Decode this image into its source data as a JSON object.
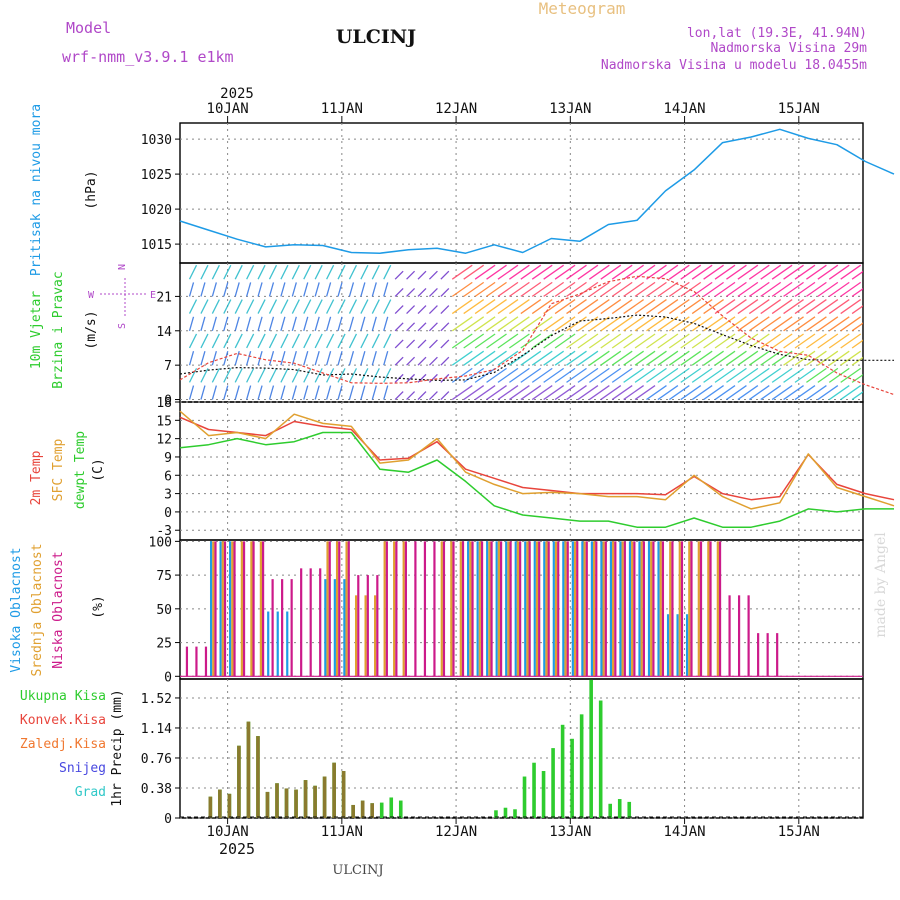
{
  "header": {
    "model_label": "Model",
    "model_name": "wrf-nmm_v3.9.1 e1km",
    "station": "ULCINJ",
    "product": "Meteogram",
    "lonlat": "lon,lat (19.3E, 41.94N)",
    "elevation": "Nadmorska Visina 29m",
    "model_elevation": "Nadmorska Visina u modelu 18.0455m"
  },
  "footer": {
    "station": "ULCINJ",
    "watermark": "made by Angel"
  },
  "colors": {
    "pressure": "#1e9be6",
    "temp": "#e8453c",
    "sfc": "#e0a030",
    "dew": "#2ecc2e",
    "high": "#1e9be6",
    "mid": "#e0a030",
    "low": "#cc1a8a",
    "precip_total": "#2ecc2e",
    "precip_conv": "#8a7a2e"
  },
  "time_axis": {
    "year_label": "2025",
    "dates": [
      "10JAN",
      "11JAN",
      "12JAN",
      "13JAN",
      "14JAN",
      "15JAN"
    ]
  },
  "chart_data": [
    {
      "type": "line",
      "ylabel": "Pritisak na nivou mora",
      "unit": "(hPa)",
      "yticks": [
        1015,
        1020,
        1025,
        1030
      ],
      "ylim": [
        1012.3,
        1032.3
      ],
      "x": [
        0,
        6,
        12,
        18,
        24,
        30,
        36,
        42,
        48,
        54,
        60,
        66,
        72,
        78,
        84,
        90,
        96,
        102,
        108,
        114,
        120,
        126,
        132,
        138,
        144,
        150
      ],
      "series": [
        {
          "values": [
            1018.3,
            1017.0,
            1015.7,
            1014.6,
            1014.9,
            1014.8,
            1013.8,
            1013.7,
            1014.2,
            1014.4,
            1013.7,
            1014.9,
            1013.8,
            1015.8,
            1015.4,
            1017.8,
            1018.4,
            1022.6,
            1025.6,
            1029.5,
            1030.3,
            1031.4,
            1030.1,
            1029.2,
            1026.8,
            1025.0
          ]
        }
      ]
    },
    {
      "type": "line",
      "ylabel": "10m Vjetar Brzina i Pravac",
      "unit": "(m/s)",
      "yticks": [
        0,
        7,
        14,
        21
      ],
      "ylim": [
        -0.5,
        27.8
      ],
      "direction_key": {
        "north": "N",
        "west": "W",
        "east": "E",
        "south": "S"
      },
      "x": [
        0,
        6,
        12,
        18,
        24,
        30,
        36,
        42,
        48,
        54,
        60,
        66,
        72,
        78,
        84,
        90,
        96,
        102,
        108,
        114,
        120,
        126,
        132,
        138,
        144,
        150
      ],
      "series": [
        {
          "values": [
            5.2,
            6.0,
            6.5,
            6.4,
            6.1,
            5.0,
            5.2,
            4.6,
            4.2,
            3.9,
            4.0,
            5.5,
            9.0,
            13.0,
            16.0,
            16.5,
            17.2,
            16.8,
            15.5,
            13.2,
            11.0,
            9.2,
            8.1,
            8.0,
            8.0,
            8.0
          ]
        },
        {
          "values": [
            4.0,
            7.5,
            9.4,
            8.1,
            7.4,
            5.4,
            3.4,
            3.3,
            3.4,
            4.2,
            4.8,
            6.1,
            10.0,
            19.5,
            21.5,
            24.0,
            25.1,
            24.6,
            22.0,
            17.0,
            12.5,
            9.8,
            9.0,
            5.4,
            3.0,
            1.0
          ]
        }
      ]
    },
    {
      "type": "line",
      "ylabel": "2m Temp",
      "ylabel2": "SFC Temp",
      "ylabel3": "dewpt Temp",
      "unit": "(C)",
      "yticks": [
        -3,
        0,
        3,
        6,
        9,
        12,
        15,
        18
      ],
      "ylim": [
        -4.6,
        18.0
      ],
      "x": [
        0,
        6,
        12,
        18,
        24,
        30,
        36,
        42,
        48,
        54,
        60,
        66,
        72,
        78,
        84,
        90,
        96,
        102,
        108,
        114,
        120,
        126,
        132,
        138,
        144,
        150
      ],
      "series": [
        {
          "name": "2m Temp",
          "values": [
            15.5,
            13.5,
            13.0,
            12.5,
            14.8,
            14.0,
            13.5,
            8.5,
            8.8,
            11.5,
            7.0,
            5.5,
            4.0,
            3.5,
            3.0,
            3.0,
            3.0,
            2.8,
            5.8,
            3.0,
            2.0,
            2.5,
            9.4,
            4.5,
            3.0,
            2.0
          ]
        },
        {
          "name": "SFC Temp",
          "values": [
            16.5,
            12.5,
            13.0,
            12.0,
            16.0,
            14.5,
            14.0,
            8.0,
            8.5,
            12.0,
            6.5,
            4.5,
            3.0,
            3.2,
            3.0,
            2.5,
            2.5,
            2.0,
            6.0,
            2.5,
            0.5,
            1.5,
            9.5,
            4.0,
            2.5,
            1.0
          ]
        },
        {
          "name": "dewpt Temp",
          "values": [
            10.5,
            11.0,
            12.0,
            11.0,
            11.5,
            13.0,
            13.0,
            7.0,
            6.5,
            8.5,
            5.0,
            1.0,
            -0.5,
            -1.0,
            -1.5,
            -1.5,
            -2.5,
            -2.5,
            -1.0,
            -2.5,
            -2.5,
            -1.5,
            0.5,
            0.0,
            0.5,
            0.5
          ]
        }
      ]
    },
    {
      "type": "bar",
      "ylabel": "Visoka Oblacnost",
      "ylabel2": "Srednja Oblacnost",
      "ylabel3": "Niska Oblacnost",
      "unit": "(%)",
      "yticks": [
        0,
        25,
        50,
        75,
        100
      ],
      "ylim": [
        -2,
        101
      ],
      "x": [
        0,
        6,
        12,
        18,
        24,
        30,
        36,
        42,
        48,
        54,
        60,
        66,
        72,
        78,
        84,
        90,
        96,
        102,
        108,
        114,
        120,
        126,
        132,
        138,
        144,
        150
      ],
      "series": [
        {
          "name": "Visoka Oblacnost",
          "values": [
            0,
            100,
            0,
            48,
            0,
            72,
            0,
            0,
            0,
            0,
            100,
            100,
            100,
            100,
            100,
            100,
            100,
            46,
            0,
            0,
            0,
            0,
            0,
            0,
            0,
            0
          ]
        },
        {
          "name": "Srednja Oblacnost",
          "values": [
            0,
            100,
            100,
            0,
            0,
            100,
            60,
            100,
            0,
            100,
            100,
            100,
            100,
            100,
            100,
            100,
            100,
            100,
            100,
            0,
            0,
            0,
            0,
            0,
            0,
            0
          ]
        },
        {
          "name": "Niska Oblacnost",
          "values": [
            22,
            100,
            100,
            72,
            80,
            100,
            75,
            100,
            100,
            100,
            100,
            100,
            100,
            100,
            100,
            100,
            100,
            100,
            100,
            60,
            32,
            0,
            0,
            0,
            0,
            0
          ]
        }
      ]
    },
    {
      "type": "bar",
      "ylabel": "1hr Precip (mm)",
      "yticks": [
        0,
        0.38,
        0.76,
        1.14,
        1.52
      ],
      "ylim": [
        0,
        1.76
      ],
      "legend": [
        "Ukupna Kisa",
        "Konvek.Kisa",
        "Zaledj.Kisa",
        "Snijeg",
        "Grad"
      ],
      "x": [
        0,
        6,
        12,
        18,
        24,
        30,
        36,
        42,
        48,
        54,
        60,
        66,
        72,
        78,
        84,
        90,
        96,
        102,
        108,
        114,
        120,
        126,
        132,
        138,
        144,
        150
      ],
      "series": [
        {
          "name": "Ukupna Kisa",
          "values": [
            0,
            0.36,
            1.22,
            0.44,
            0.48,
            0.7,
            0.22,
            0.26,
            0,
            0,
            0,
            0.13,
            0.7,
            1.18,
            1.75,
            0.24,
            0,
            0,
            0,
            0,
            0,
            0,
            0,
            0,
            0,
            0
          ]
        },
        {
          "name": "Konvek.Kisa",
          "values": [
            0,
            0.36,
            1.22,
            0.44,
            0.48,
            0.7,
            0.22,
            0,
            0,
            0,
            0,
            0,
            0,
            0,
            0,
            0,
            0,
            0,
            0,
            0,
            0,
            0,
            0,
            0,
            0,
            0
          ]
        }
      ]
    }
  ]
}
